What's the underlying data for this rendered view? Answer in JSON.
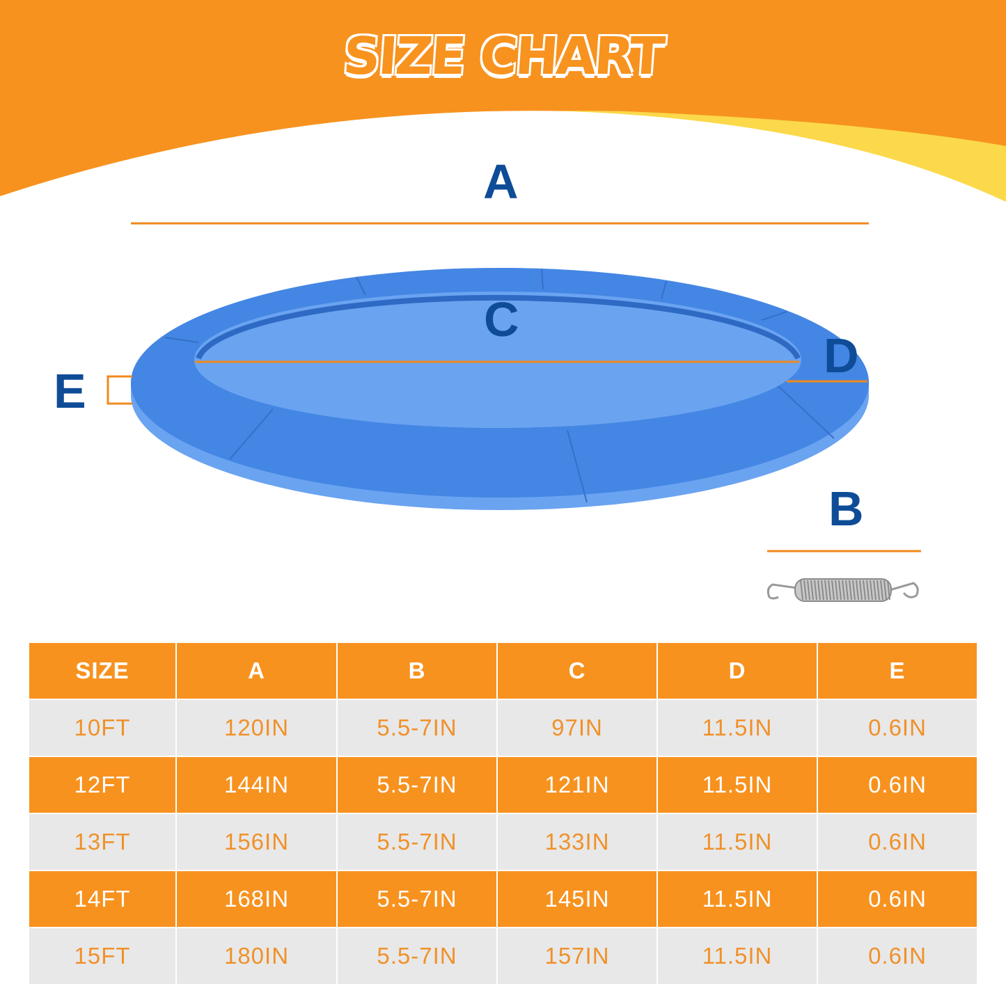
{
  "title": "SIZE CHART",
  "diagram": {
    "labels": {
      "a": "A",
      "b": "B",
      "c": "C",
      "d": "D",
      "e": "E"
    },
    "colors": {
      "orange": "#f7921f",
      "yellow": "#fbd94a",
      "ring_blue": "#4486e4",
      "label_blue": "#0f4c97"
    }
  },
  "table": {
    "headers": [
      "SIZE",
      "A",
      "B",
      "C",
      "D",
      "E"
    ],
    "rows": [
      [
        "10FT",
        "120IN",
        "5.5-7IN",
        "97IN",
        "11.5IN",
        "0.6IN"
      ],
      [
        "12FT",
        "144IN",
        "5.5-7IN",
        "121IN",
        "11.5IN",
        "0.6IN"
      ],
      [
        "13FT",
        "156IN",
        "5.5-7IN",
        "133IN",
        "11.5IN",
        "0.6IN"
      ],
      [
        "14FT",
        "168IN",
        "5.5-7IN",
        "145IN",
        "11.5IN",
        "0.6IN"
      ],
      [
        "15FT",
        "180IN",
        "5.5-7IN",
        "157IN",
        "11.5IN",
        "0.6IN"
      ]
    ]
  }
}
